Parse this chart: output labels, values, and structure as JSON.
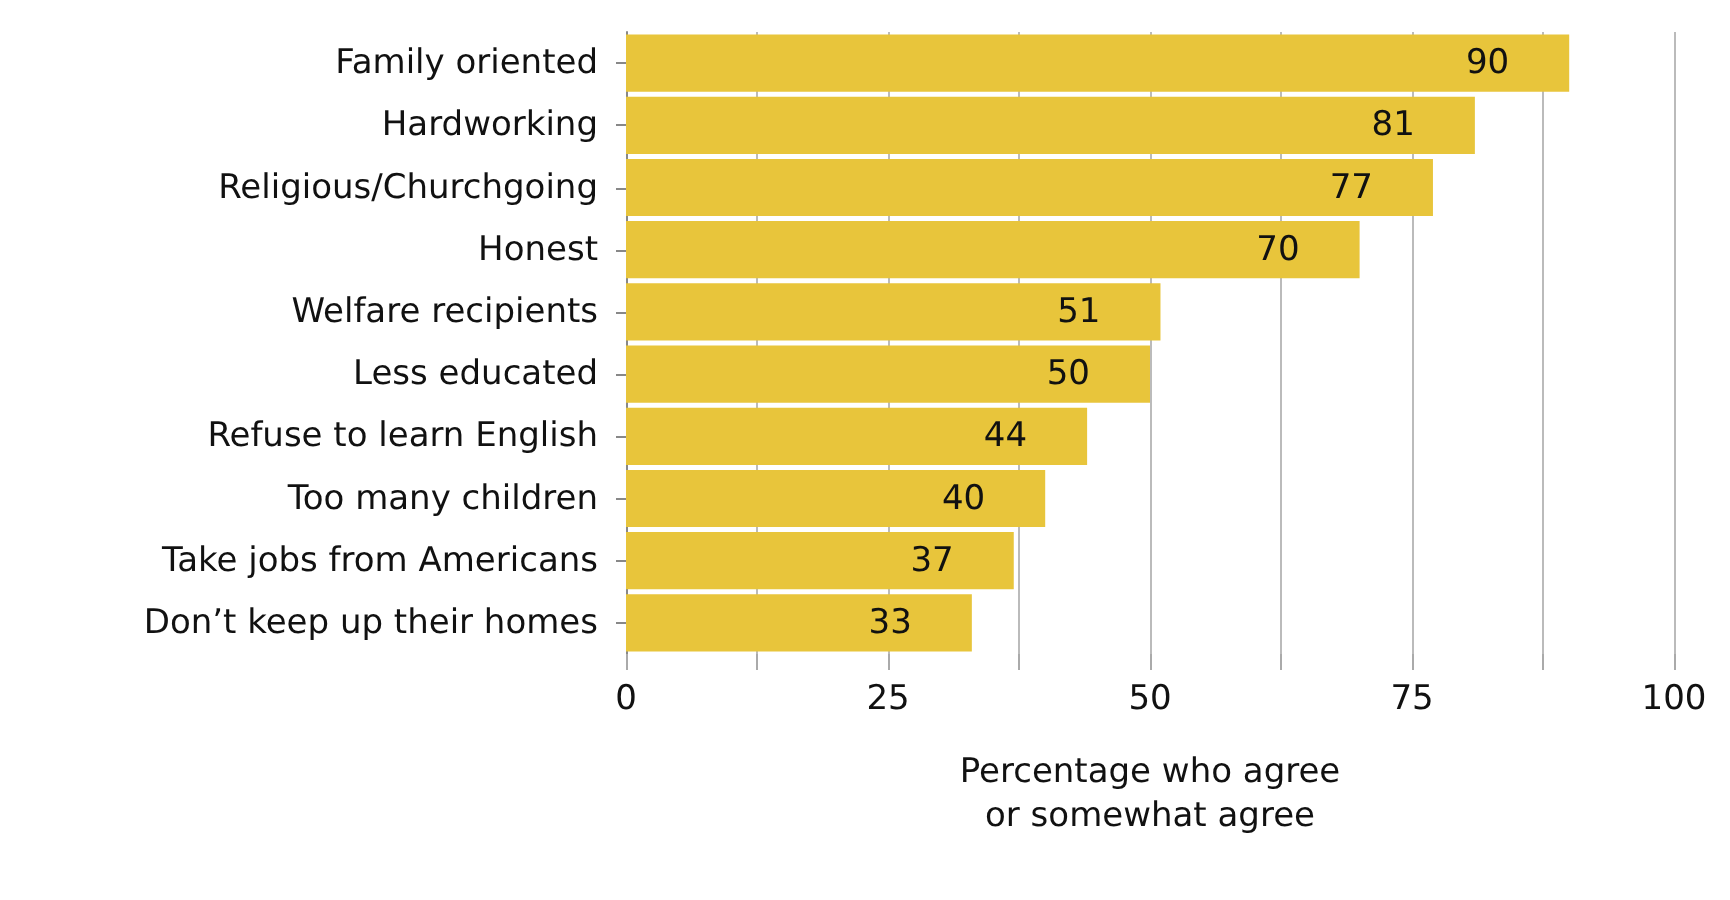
{
  "chart_data": {
    "type": "bar",
    "orientation": "horizontal",
    "xlabel": "Percentage who agree\nor somewhat agree",
    "categories": [
      "Family oriented",
      "Hardworking",
      "Religious/Churchgoing",
      "Honest",
      "Welfare recipients",
      "Less educated",
      "Refuse to learn English",
      "Too many children",
      "Take jobs from Americans",
      "Don’t keep up their homes"
    ],
    "values": [
      90,
      81,
      77,
      70,
      51,
      50,
      44,
      40,
      37,
      33
    ],
    "color": "#e8c53b",
    "data_labels": true,
    "grid": "x",
    "xlim": [
      0,
      100
    ],
    "xticks": [
      0,
      {
        "value": 12.5,
        "label": null
      },
      25,
      {
        "value": 37.5,
        "label": null
      },
      50,
      {
        "value": 62.5,
        "label": null
      },
      75,
      {
        "value": 87.5,
        "label": null
      },
      100
    ]
  }
}
